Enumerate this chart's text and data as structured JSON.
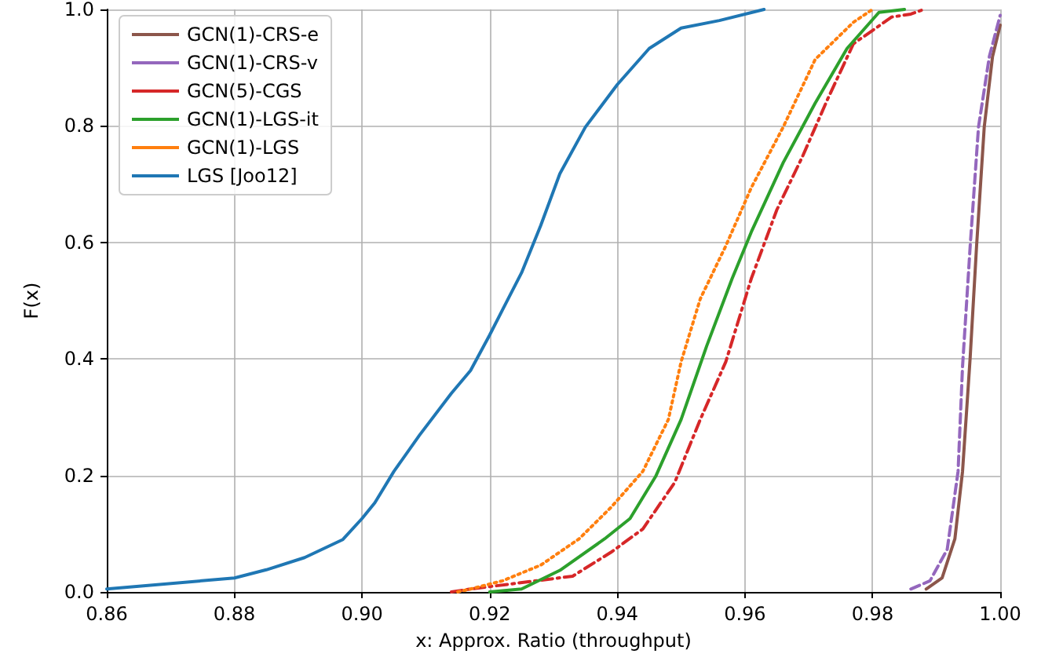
{
  "chart_data": {
    "type": "line",
    "xlabel": "x: Approx. Ratio (throughput)",
    "ylabel": "F(x)",
    "xlim": [
      0.86,
      1.0
    ],
    "xticks": [
      0.86,
      0.88,
      {
        "value": 0.9,
        "label": "0.90"
      },
      0.92,
      0.94,
      0.96,
      0.98,
      {
        "value": 1.0,
        "label": "1.00"
      }
    ],
    "ylim": [
      0,
      1
    ],
    "yticks": [
      {
        "value": 0,
        "label": "0.0"
      },
      0.2,
      0.4,
      0.6,
      0.8,
      {
        "value": 1,
        "label": "1.0"
      }
    ],
    "grid": true,
    "legend": "top left",
    "marker": "none",
    "series": [
      {
        "name": "GCN(1)-CRS-e",
        "color": "#8c564b",
        "line_style": "solid",
        "x": [
          0.9884,
          0.9909,
          0.9929,
          0.9941,
          0.9953,
          0.9963,
          0.9975,
          0.9988,
          1.0
        ],
        "values": [
          0.005,
          0.024,
          0.091,
          0.207,
          0.403,
          0.594,
          0.798,
          0.919,
          0.973
        ]
      },
      {
        "name": "GCN(1)-CRS-v",
        "color": "#9467bd",
        "line_style": "dashed",
        "x": [
          0.986,
          0.989,
          0.9917,
          0.9934,
          0.9941,
          0.9953,
          0.9966,
          0.9983,
          1.0
        ],
        "values": [
          0.005,
          0.019,
          0.073,
          0.207,
          0.387,
          0.594,
          0.798,
          0.919,
          0.99
        ]
      },
      {
        "name": "GCN(5)-CGS",
        "color": "#d62728",
        "line_style": "dashdot",
        "x": [
          0.914,
          0.917,
          0.933,
          0.939,
          0.944,
          0.949,
          0.953,
          0.957,
          0.961,
          0.965,
          0.969,
          0.973,
          0.977,
          0.983,
          0.986,
          0.988
        ],
        "values": [
          0.0,
          0.005,
          0.027,
          0.068,
          0.108,
          0.188,
          0.296,
          0.395,
          0.538,
          0.656,
          0.747,
          0.847,
          0.941,
          0.987,
          0.992,
          1.0
        ]
      },
      {
        "name": "GCN(1)-LGS-it",
        "color": "#2ca02c",
        "line_style": "solid",
        "x": [
          0.92,
          0.925,
          0.931,
          0.938,
          0.942,
          0.946,
          0.95,
          0.954,
          0.958,
          0.961,
          0.966,
          0.971,
          0.976,
          0.981,
          0.985
        ],
        "values": [
          0.0,
          0.005,
          0.037,
          0.091,
          0.126,
          0.198,
          0.296,
          0.422,
          0.538,
          0.618,
          0.737,
          0.839,
          0.933,
          0.995,
          1.0
        ]
      },
      {
        "name": "GCN(1)-LGS",
        "color": "#ff7f0e",
        "line_style": "dotted",
        "x": [
          0.915,
          0.917,
          0.922,
          0.928,
          0.934,
          0.939,
          0.944,
          0.948,
          0.95,
          0.953,
          0.957,
          0.961,
          0.966,
          0.971,
          0.977,
          0.98
        ],
        "values": [
          0.0,
          0.005,
          0.019,
          0.046,
          0.091,
          0.145,
          0.207,
          0.296,
          0.395,
          0.503,
          0.594,
          0.694,
          0.798,
          0.914,
          0.978,
          1.0
        ]
      },
      {
        "name": "LGS [Joo12]",
        "color": "#1f77b4",
        "line_style": "solid",
        "x": [
          0.86,
          0.88,
          0.885,
          0.891,
          0.897,
          0.9,
          0.902,
          0.905,
          0.909,
          0.914,
          0.917,
          0.92,
          0.922,
          0.925,
          0.928,
          0.931,
          0.935,
          0.94,
          0.945,
          0.95,
          0.956,
          0.963
        ],
        "values": [
          0.005,
          0.024,
          0.038,
          0.059,
          0.09,
          0.126,
          0.153,
          0.207,
          0.269,
          0.341,
          0.38,
          0.441,
          0.484,
          0.548,
          0.629,
          0.718,
          0.798,
          0.871,
          0.933,
          0.968,
          0.981,
          1.0
        ]
      }
    ]
  }
}
